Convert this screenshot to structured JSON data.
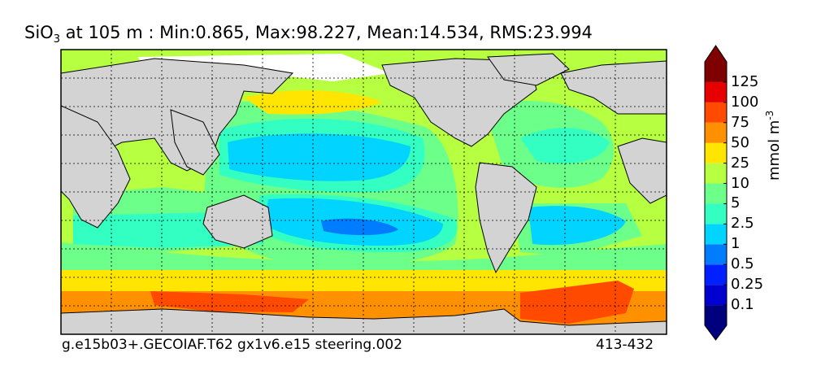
{
  "title": {
    "species": "SiO",
    "subscript": "3",
    "rest": " at 105 m : Min:0.865, Max:98.227, Mean:14.534, RMS:23.994"
  },
  "footer": {
    "case_name": "g.e15b03+.GECOIAF.T62 gx1v6.e15 steering.002",
    "years": "413-432"
  },
  "colorbar": {
    "units_text": "mmol m",
    "units_exp": "-3",
    "levels": [
      "0.1",
      "0.25",
      "0.5",
      "1",
      "2.5",
      "5",
      "10",
      "25",
      "50",
      "75",
      "100",
      "125"
    ],
    "colors": [
      "#00007f",
      "#0000d0",
      "#0020ff",
      "#007cff",
      "#00d4ff",
      "#33ffc3",
      "#6cff8a",
      "#b6ff41",
      "#ffe500",
      "#ff9000",
      "#ff4a00",
      "#e60000",
      "#7f0000"
    ],
    "under_color": "#00007f",
    "over_color": "#7f0000"
  },
  "map_colors": {
    "land": "#d3d3d3",
    "ice": "#ffffff"
  }
}
